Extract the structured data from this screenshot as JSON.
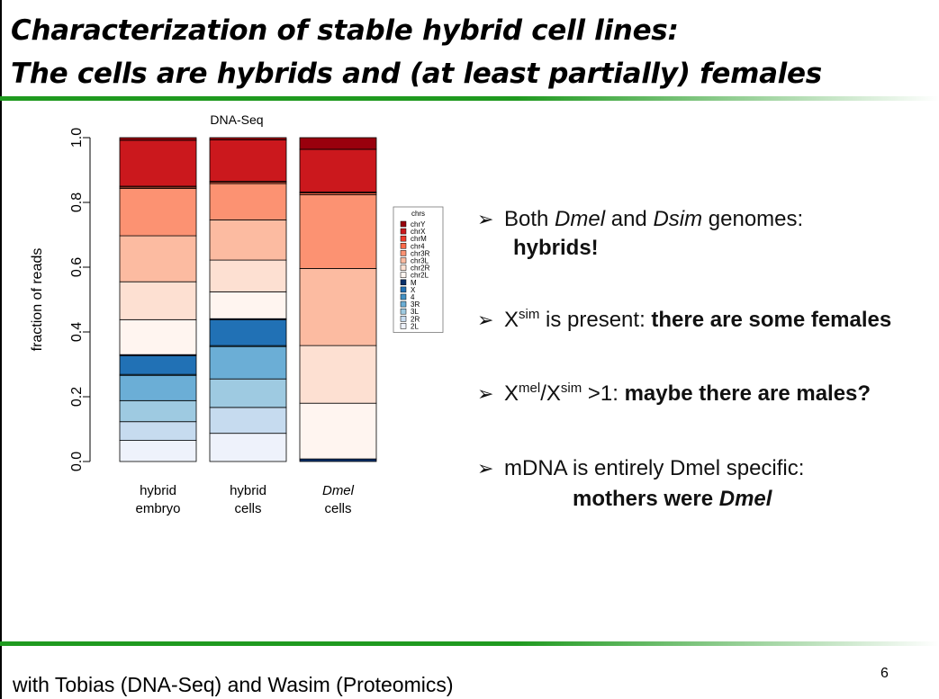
{
  "slide": {
    "title_line1": "Characterization of stable hybrid cell lines:",
    "title_line2": "The cells are hybrids and (at least partially) females",
    "footer": "with Tobias (DNA-Seq) and Wasim (Proteomics)",
    "page_number": "6"
  },
  "bullets": {
    "b1_pre": "Both ",
    "b1_em1": "Dmel",
    "b1_mid": " and ",
    "b1_em2": "Dsim",
    "b1_post": " genomes:",
    "b1_line2": "hybrids!",
    "b2_x": "X",
    "b2_sup": "sim",
    "b2_text": " is present: ",
    "b2_bold": "there are some females",
    "b3_x1": "X",
    "b3_sup1": "mel",
    "b3_slash": "/X",
    "b3_sup2": "sim",
    "b3_text": " >1: ",
    "b3_bold": "maybe there are males?",
    "b4_line1": "mDNA is entirely Dmel specific:",
    "b4_line2_pre": "mothers were ",
    "b4_line2_em": "Dmel"
  },
  "chart_data": {
    "type": "bar",
    "stacked": true,
    "title": "DNA-Seq",
    "ylabel": "fraction of reads",
    "ylim": [
      0,
      1
    ],
    "yticks": [
      "0.0",
      "0.2",
      "0.4",
      "0.6",
      "0.8",
      "1.0"
    ],
    "categories": [
      {
        "line1": "hybrid",
        "line2": "embryo",
        "italic": false
      },
      {
        "line1": "hybrid",
        "line2": "cells",
        "italic": false
      },
      {
        "line1": "Dmel",
        "line2": "cells",
        "italic": true
      }
    ],
    "legend_title": "chrs",
    "legend_position": "right",
    "series": [
      {
        "name": "2L",
        "color": "#eef2fb",
        "values": [
          0.065,
          0.087,
          0.0
        ]
      },
      {
        "name": "2R",
        "color": "#c6dbef",
        "values": [
          0.058,
          0.08,
          0.0
        ]
      },
      {
        "name": "3L",
        "color": "#9ecae1",
        "values": [
          0.065,
          0.088,
          0.0
        ]
      },
      {
        "name": "3R",
        "color": "#6baed6",
        "values": [
          0.078,
          0.1,
          0.0
        ]
      },
      {
        "name": "4",
        "color": "#4292c6",
        "values": [
          0.003,
          0.003,
          0.0
        ]
      },
      {
        "name": "X",
        "color": "#2171b5",
        "values": [
          0.058,
          0.08,
          0.0
        ]
      },
      {
        "name": "M",
        "color": "#08306b",
        "values": [
          0.003,
          0.003,
          0.008
        ]
      },
      {
        "name": "chr2L",
        "color": "#fff5f0",
        "values": [
          0.108,
          0.083,
          0.172
        ]
      },
      {
        "name": "chr2R",
        "color": "#fde0d2",
        "values": [
          0.117,
          0.098,
          0.178
        ]
      },
      {
        "name": "chr3L",
        "color": "#fcbba1",
        "values": [
          0.142,
          0.124,
          0.238
        ]
      },
      {
        "name": "chr3R",
        "color": "#fc9272",
        "values": [
          0.146,
          0.112,
          0.228
        ]
      },
      {
        "name": "chr4",
        "color": "#fb6a4a",
        "values": [
          0.004,
          0.004,
          0.005
        ]
      },
      {
        "name": "chrM",
        "color": "#ef3b2c",
        "values": [
          0.003,
          0.003,
          0.003
        ]
      },
      {
        "name": "chrX",
        "color": "#cb181d",
        "values": [
          0.142,
          0.128,
          0.132
        ]
      },
      {
        "name": "chrY",
        "color": "#99000d",
        "values": [
          0.008,
          0.007,
          0.036
        ]
      }
    ]
  }
}
